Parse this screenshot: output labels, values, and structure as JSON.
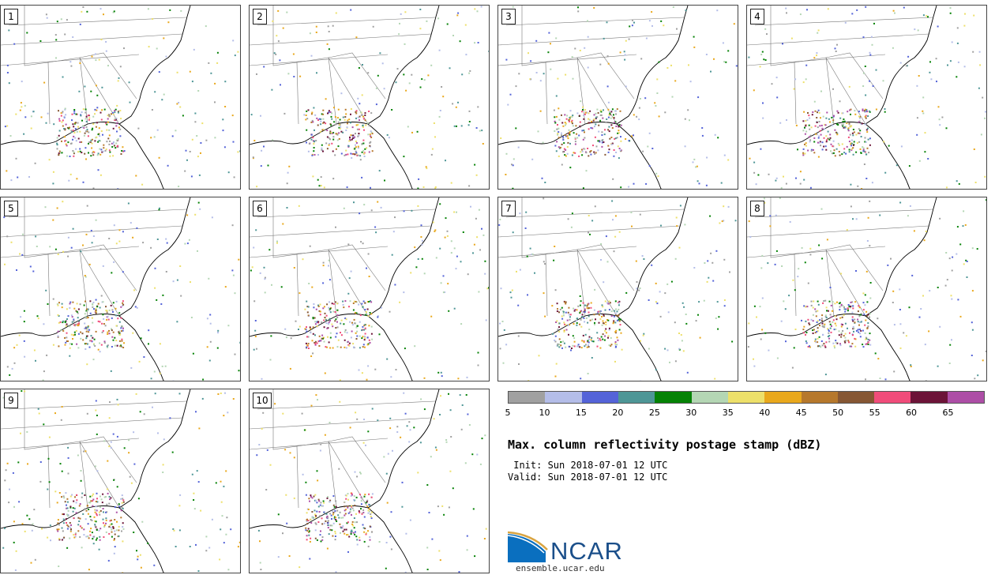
{
  "chart_data": {
    "type": "heatmap",
    "title": "Max. column reflectivity postage stamp (dBZ)",
    "init": " Init: Sun 2018-07-01 12 UTC",
    "valid": "Valid: Sun 2018-07-01 12 UTC",
    "units": "dBZ",
    "members": [
      "1",
      "2",
      "3",
      "4",
      "5",
      "6",
      "7",
      "8",
      "9",
      "10"
    ],
    "colorbar": {
      "ticks": [
        "5",
        "10",
        "15",
        "20",
        "25",
        "30",
        "35",
        "40",
        "45",
        "50",
        "55",
        "60",
        "65"
      ],
      "colors": [
        "#a0a0a0",
        "#b4bde8",
        "#5463d8",
        "#4e9696",
        "#058205",
        "#b4d6b4",
        "#ede06a",
        "#e9a81c",
        "#b6782c",
        "#865734",
        "#f04c7a",
        "#6c1438",
        "#ad4ea6"
      ]
    }
  },
  "branding": {
    "logo_text": "NCAR",
    "site": "ensemble.ucar.edu"
  }
}
